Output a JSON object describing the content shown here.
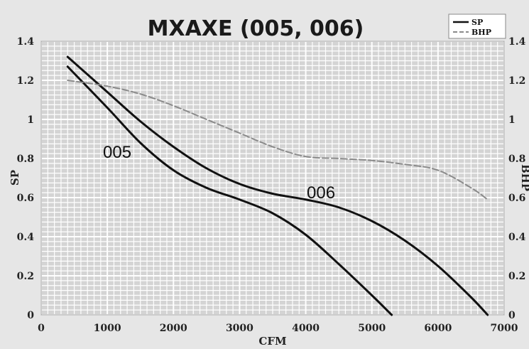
{
  "chart_data": {
    "type": "line",
    "title": "MXAXE (005, 006)",
    "xlabel": "CFM",
    "ylabel": "SP",
    "ylabel_right": "BHP",
    "xlim": [
      0,
      7000
    ],
    "ylim": [
      0,
      1.4
    ],
    "x_ticks": [
      "0",
      "1000",
      "2000",
      "3000",
      "4000",
      "5000",
      "6000",
      "7000"
    ],
    "y_ticks": [
      "0",
      "0.2",
      "0.4",
      "0.6",
      "0.8",
      "1",
      "1.2",
      "1.4"
    ],
    "y2_ticks": [
      "0",
      "0.2",
      "0.4",
      "0.6",
      "0.8",
      "1",
      "1.2",
      "1.4"
    ],
    "grid": true,
    "legend": {
      "placement": "top-right",
      "entries": [
        {
          "name": "SP",
          "color": "#111111",
          "style": "solid"
        },
        {
          "name": "BHP",
          "color": "#8a8a8a",
          "style": "dashed"
        }
      ]
    },
    "series": [
      {
        "name": "SP",
        "label": "005",
        "color": "#111111",
        "style": "solid",
        "x": [
          400,
          1000,
          1500,
          2000,
          2500,
          3000,
          3500,
          4000,
          4500,
          5000,
          5300
        ],
        "y": [
          1.27,
          1.06,
          0.88,
          0.74,
          0.65,
          0.59,
          0.52,
          0.41,
          0.26,
          0.1,
          0.0
        ]
      },
      {
        "name": "SP",
        "label": "006",
        "color": "#111111",
        "style": "solid",
        "x": [
          400,
          1000,
          1500,
          2000,
          2500,
          3000,
          3500,
          4000,
          4500,
          5000,
          5500,
          6000,
          6500,
          6750
        ],
        "y": [
          1.32,
          1.14,
          0.99,
          0.86,
          0.75,
          0.67,
          0.62,
          0.59,
          0.55,
          0.48,
          0.38,
          0.25,
          0.09,
          0.0
        ]
      },
      {
        "name": "BHP",
        "color": "#8a8a8a",
        "style": "dashed",
        "x": [
          400,
          1000,
          1500,
          2000,
          2500,
          3000,
          3500,
          4000,
          4500,
          5000,
          5500,
          6000,
          6500,
          6750
        ],
        "y": [
          1.2,
          1.17,
          1.13,
          1.07,
          1.0,
          0.93,
          0.86,
          0.81,
          0.8,
          0.79,
          0.77,
          0.74,
          0.65,
          0.59
        ]
      }
    ]
  }
}
